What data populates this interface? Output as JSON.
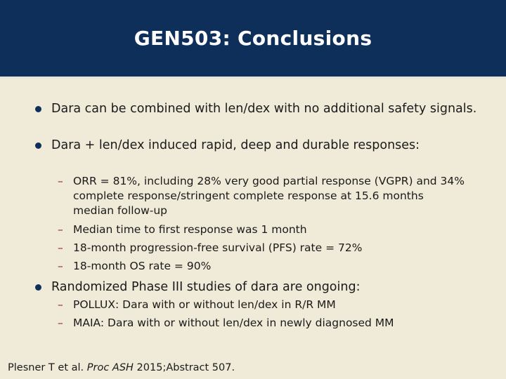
{
  "slide": {
    "title": "GEN503: Conclusions"
  },
  "bullets": [
    {
      "text": "Dara can be combined with len/dex with no additional safety signals."
    },
    {
      "text": "Dara + len/dex induced rapid, deep and durable responses:",
      "subs": [
        "ORR = 81%, including 28% very good partial response (VGPR) and 34% complete response/stringent complete response at 15.6 months median follow-up",
        "Median time to first response was 1 month",
        "18-month progression-free survival (PFS) rate = 72%",
        "18-month OS rate = 90%"
      ]
    },
    {
      "text": "Randomized Phase III studies of dara are ongoing:",
      "subs": [
        "POLLUX: Dara with or without len/dex in R/R MM",
        "MAIA: Dara with or without len/dex in newly diagnosed MM"
      ]
    }
  ],
  "citation": {
    "authors": "Plesner T et al.",
    "journal": "Proc ASH",
    "rest": "2015;Abstract 507."
  },
  "colors": {
    "title_bar": "#0d2f5a",
    "background": "#f0ead8",
    "bullet": "#0d2f5a",
    "dash": "#8a2a1a"
  }
}
